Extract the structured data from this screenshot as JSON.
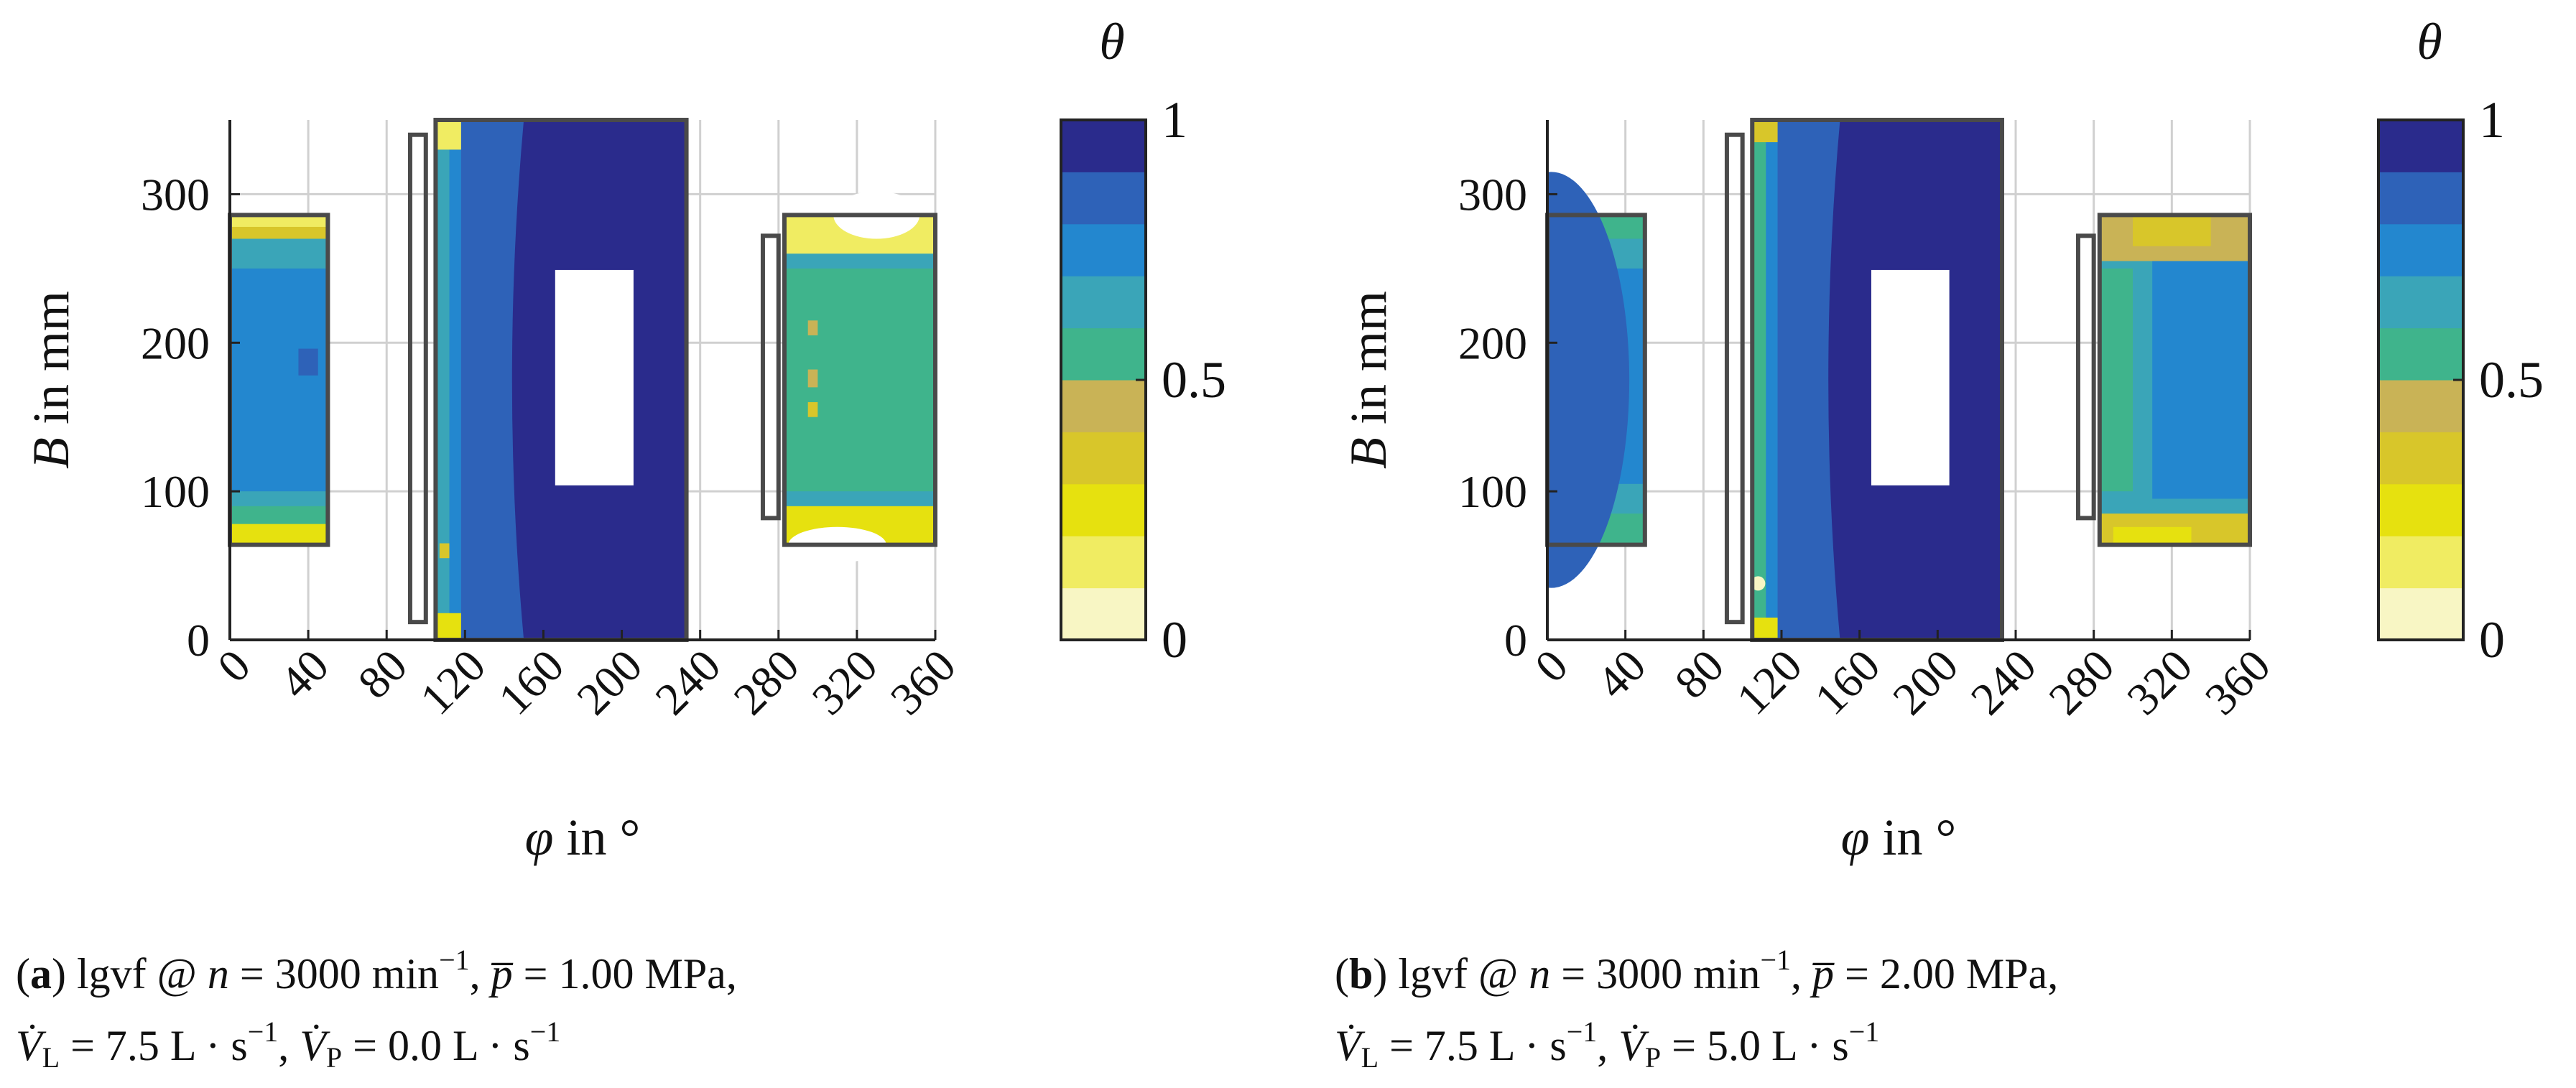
{
  "figure": {
    "panels": [
      {
        "id": "a",
        "caption": {
          "label": "a",
          "line1_text": "lgvf @ n = 3000 min⁻¹, p̅ = 1.00 MPa,",
          "line2_text": "V̇L = 7.5 L·s⁻¹, V̇P = 0.0 L·s⁻¹",
          "l1_a": "lgvf @ ",
          "l1_n": "n",
          "l1_b": " = 3000 min",
          "l1_exp": "−1",
          "l1_c": ", ",
          "l1_p": "p̅",
          "l1_d": " = 1.00 MPa,",
          "l2_v1": "V̇",
          "l2_s1": "L",
          "l2_a": " = 7.5 L · s",
          "l2_e1": "−1",
          "l2_b": ", ",
          "l2_v2": "V̇",
          "l2_s2": "P",
          "l2_c": " = 0.0 L · s",
          "l2_e2": "−1"
        }
      },
      {
        "id": "b",
        "caption": {
          "label": "b",
          "line1_text": "lgvf @ n = 3000 min⁻¹, p̅ = 2.00 MPa,",
          "line2_text": "V̇L = 7.5 L·s⁻¹, V̇P = 5.0 L·s⁻¹",
          "l1_a": "lgvf @ ",
          "l1_n": "n",
          "l1_b": " = 3000 min",
          "l1_exp": "−1",
          "l1_c": ", ",
          "l1_p": "p̅",
          "l1_d": " = 2.00 MPa,",
          "l2_v1": "V̇",
          "l2_s1": "L",
          "l2_a": " = 7.5 L · s",
          "l2_e1": "−1",
          "l2_b": ", ",
          "l2_v2": "V̇",
          "l2_s2": "P",
          "l2_c": " = 5.0 L · s",
          "l2_e2": "−1"
        }
      }
    ]
  },
  "chart_data": [
    {
      "type": "heatmap",
      "panel": "a",
      "xlabel_symbol": "φ",
      "xlabel_rest": " in °",
      "ylabel_symbol": "B",
      "ylabel_rest": " in mm",
      "xlim": [
        0,
        360
      ],
      "ylim": [
        0,
        350
      ],
      "xticks": [
        0,
        40,
        80,
        120,
        160,
        200,
        240,
        280,
        320,
        360
      ],
      "yticks": [
        0,
        100,
        200,
        300
      ],
      "grid": true,
      "colorbar": {
        "title": "θ",
        "ticks": [
          0,
          0.5,
          1
        ],
        "levels": 10,
        "range": [
          0,
          1
        ]
      },
      "regions": [
        {
          "name": "left pad",
          "phi": [
            0,
            50
          ],
          "B": [
            64,
            286
          ],
          "theta_core": 0.8,
          "theta_edge": 0.15
        },
        {
          "name": "central pad",
          "phi": [
            105,
            233
          ],
          "B": [
            0,
            350
          ],
          "theta_core": 0.95,
          "theta_edge": 0.7
        },
        {
          "name": "right pad",
          "phi": [
            283,
            360
          ],
          "B": [
            64,
            286
          ],
          "theta_core": 0.6,
          "theta_edge": 0.15
        }
      ]
    },
    {
      "type": "heatmap",
      "panel": "b",
      "xlabel_symbol": "φ",
      "xlabel_rest": " in °",
      "ylabel_symbol": "B",
      "ylabel_rest": " in mm",
      "xlim": [
        0,
        360
      ],
      "ylim": [
        0,
        350
      ],
      "xticks": [
        0,
        40,
        80,
        120,
        160,
        200,
        240,
        280,
        320,
        360
      ],
      "yticks": [
        0,
        100,
        200,
        300
      ],
      "grid": true,
      "colorbar": {
        "title": "θ",
        "ticks": [
          0,
          0.5,
          1
        ],
        "levels": 10,
        "range": [
          0,
          1
        ]
      },
      "regions": [
        {
          "name": "left pad",
          "phi": [
            0,
            50
          ],
          "B": [
            64,
            286
          ],
          "theta_core": 0.85,
          "theta_edge": 0.55
        },
        {
          "name": "central pad",
          "phi": [
            105,
            233
          ],
          "B": [
            0,
            350
          ],
          "theta_core": 0.95,
          "theta_edge": 0.7
        },
        {
          "name": "right pad",
          "phi": [
            283,
            360
          ],
          "B": [
            64,
            286
          ],
          "theta_core": 0.75,
          "theta_edge": 0.3
        }
      ]
    }
  ],
  "colors": {
    "levels": [
      "#f8f6c4",
      "#f0ec62",
      "#e6e10f",
      "#d8c62a",
      "#c9b356",
      "#3fb48c",
      "#3aa5b8",
      "#2387cf",
      "#2e62b8",
      "#2a2b8c"
    ],
    "outline": "#4a4a4a",
    "grid": "#d0d0d0",
    "axis": "#222222"
  }
}
